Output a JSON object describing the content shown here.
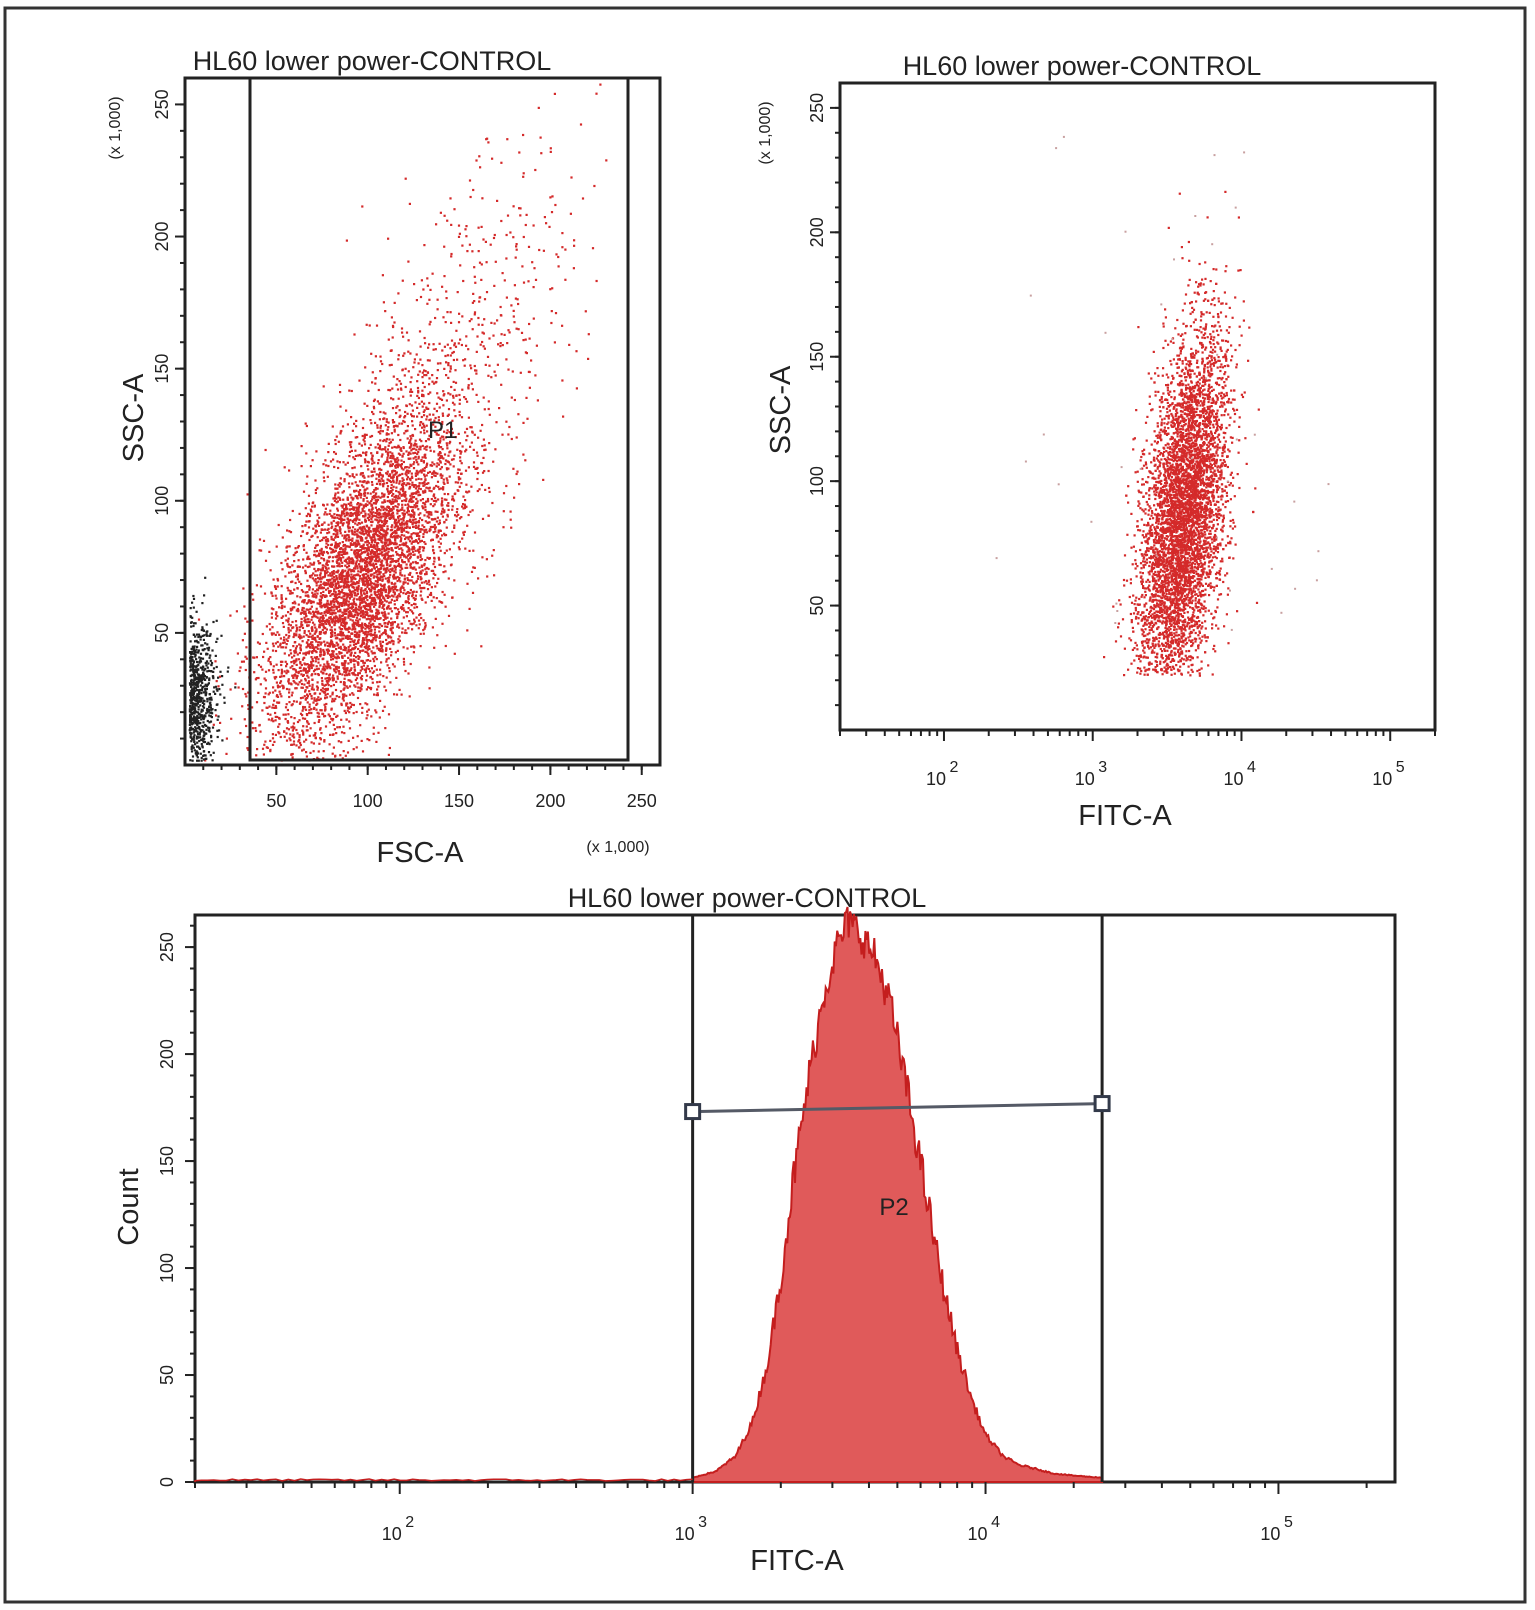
{
  "panels": {
    "top_left": {
      "title": "HL60 lower power-CONTROL",
      "xlabel": "FSC-A",
      "ylabel": "SSC-A",
      "x_multiplier": "(x 1,000)",
      "y_multiplier": "(x 1,000)",
      "x_ticks": [
        "50",
        "100",
        "150",
        "200",
        "250"
      ],
      "y_ticks": [
        "50",
        "100",
        "150",
        "200",
        "250"
      ],
      "gate_label": "P1"
    },
    "top_right": {
      "title": "HL60 lower power-CONTROL",
      "xlabel": "FITC-A",
      "ylabel": "SSC-A",
      "y_multiplier": "(x 1,000)",
      "x_ticks": [
        {
          "base": "10",
          "exp": "2"
        },
        {
          "base": "10",
          "exp": "3"
        },
        {
          "base": "10",
          "exp": "4"
        },
        {
          "base": "10",
          "exp": "5"
        }
      ],
      "y_ticks": [
        "50",
        "100",
        "150",
        "200",
        "250"
      ]
    },
    "bottom": {
      "title": "HL60 lower power-CONTROL",
      "xlabel": "FITC-A",
      "ylabel": "Count",
      "x_ticks": [
        {
          "base": "10",
          "exp": "2"
        },
        {
          "base": "10",
          "exp": "3"
        },
        {
          "base": "10",
          "exp": "4"
        },
        {
          "base": "10",
          "exp": "5"
        }
      ],
      "y_ticks": [
        "0",
        "50",
        "100",
        "150",
        "200",
        "250"
      ],
      "gate_label": "P2"
    }
  },
  "colors": {
    "gated_events": "#d42a2a",
    "ungated_events": "#222222",
    "histogram_fill": "#e05a5a",
    "histogram_edge": "#c41e1e"
  },
  "chart_data": [
    {
      "type": "scatter",
      "title": "HL60 lower power-CONTROL",
      "xlabel": "FSC-A",
      "ylabel": "SSC-A",
      "xlim": [
        0,
        260
      ],
      "ylim": [
        0,
        260
      ],
      "x_unit": "x 1,000",
      "y_unit": "x 1,000",
      "gates": [
        {
          "name": "P1",
          "x_range": [
            40,
            245
          ],
          "y_range": [
            0,
            262
          ]
        }
      ],
      "populations": [
        {
          "color": "#d42a2a",
          "center": [
            95,
            70
          ],
          "x_spread": 26,
          "y_spread": 32,
          "count": 5200
        },
        {
          "color": "#d42a2a",
          "center": [
            140,
            140
          ],
          "x_spread": 35,
          "y_spread": 45,
          "count": 700
        },
        {
          "color": "#222222",
          "center": [
            14,
            25
          ],
          "x_spread": 7,
          "y_spread": 14,
          "count": 700
        }
      ]
    },
    {
      "type": "scatter",
      "title": "HL60 lower power-CONTROL",
      "xlabel": "FITC-A",
      "ylabel": "SSC-A",
      "x_scale": "log",
      "xlim": [
        20,
        200000
      ],
      "ylim": [
        0,
        260
      ],
      "y_unit": "x 1,000",
      "populations": [
        {
          "color": "#d42a2a",
          "center_log10x": 3.6,
          "center_y": 85,
          "x_spread": 0.13,
          "y_spread": 35,
          "count": 5500
        }
      ]
    },
    {
      "type": "area",
      "title": "HL60 lower power-CONTROL",
      "xlabel": "FITC-A",
      "ylabel": "Count",
      "x_scale": "log",
      "xlim": [
        20,
        250000
      ],
      "ylim": [
        0,
        265
      ],
      "gates": [
        {
          "name": "P2",
          "x_range": [
            1000,
            25000
          ],
          "y": 175
        }
      ],
      "x": [
        1000,
        1200,
        1400,
        1600,
        1800,
        2000,
        2200,
        2500,
        2800,
        3100,
        3400,
        3800,
        4200,
        4700,
        5200,
        5800,
        6500,
        7200,
        8000,
        9000,
        10000,
        11500,
        13000,
        15000,
        17000,
        20000,
        25000
      ],
      "values": [
        2,
        5,
        12,
        28,
        55,
        95,
        140,
        190,
        228,
        250,
        262,
        255,
        245,
        225,
        195,
        160,
        122,
        90,
        62,
        38,
        22,
        12,
        8,
        6,
        4,
        3,
        2
      ]
    }
  ]
}
